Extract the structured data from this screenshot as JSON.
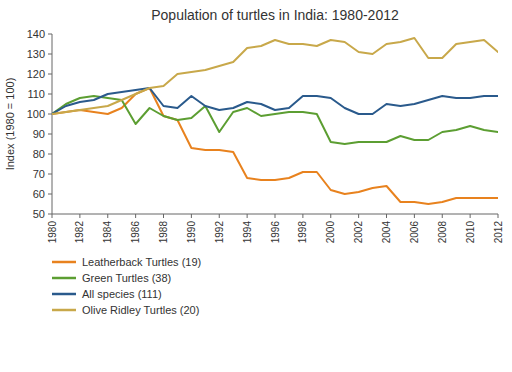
{
  "chart_data": {
    "type": "line",
    "title": "Population of turtles in India: 1980-2012",
    "y_label": "Index (1980 = 100)",
    "x": [
      1980,
      1981,
      1982,
      1983,
      1984,
      1985,
      1986,
      1987,
      1988,
      1989,
      1990,
      1991,
      1992,
      1993,
      1994,
      1995,
      1996,
      1997,
      1998,
      1999,
      2000,
      2001,
      2002,
      2003,
      2004,
      2005,
      2006,
      2007,
      2008,
      2009,
      2010,
      2011,
      2012
    ],
    "xlim": [
      1980,
      2012
    ],
    "xticks": [
      1980,
      1982,
      1984,
      1986,
      1988,
      1990,
      1992,
      1994,
      1996,
      1998,
      2000,
      2002,
      2004,
      2006,
      2008,
      2010,
      2012
    ],
    "ylim": [
      50,
      140
    ],
    "yticks": [
      50,
      60,
      70,
      80,
      90,
      100,
      110,
      120,
      130,
      140
    ],
    "grid": false,
    "legend": "bottom",
    "series": [
      {
        "name": "Leatherback Turtles (19)",
        "color": "#E8821E",
        "values": [
          100,
          101,
          102,
          101,
          100,
          103,
          110,
          113,
          99,
          97,
          83,
          82,
          82,
          81,
          68,
          67,
          67,
          68,
          71,
          71,
          62,
          60,
          61,
          63,
          64,
          56,
          56,
          55,
          56,
          58,
          58,
          58,
          58
        ]
      },
      {
        "name": "Green Turtles (38)",
        "color": "#5C9E32",
        "values": [
          100,
          105,
          108,
          109,
          108,
          107,
          95,
          103,
          99,
          97,
          98,
          104,
          91,
          101,
          103,
          99,
          100,
          101,
          101,
          100,
          86,
          85,
          86,
          86,
          86,
          89,
          87,
          87,
          91,
          92,
          94,
          92,
          91
        ]
      },
      {
        "name": "All species (111)",
        "color": "#2A5A8C",
        "values": [
          100,
          104,
          106,
          107,
          110,
          111,
          112,
          113,
          104,
          103,
          109,
          104,
          102,
          103,
          106,
          105,
          102,
          103,
          109,
          109,
          108,
          103,
          100,
          100,
          105,
          104,
          105,
          107,
          109,
          108,
          108,
          109,
          109
        ]
      },
      {
        "name": "Olive Ridley Turtles (20)",
        "color": "#C8A84A",
        "values": [
          100,
          101,
          102,
          103,
          104,
          107,
          110,
          113,
          114,
          120,
          121,
          122,
          124,
          126,
          133,
          134,
          137,
          135,
          135,
          134,
          137,
          136,
          131,
          130,
          135,
          136,
          138,
          128,
          128,
          135,
          136,
          137,
          131
        ]
      }
    ]
  }
}
